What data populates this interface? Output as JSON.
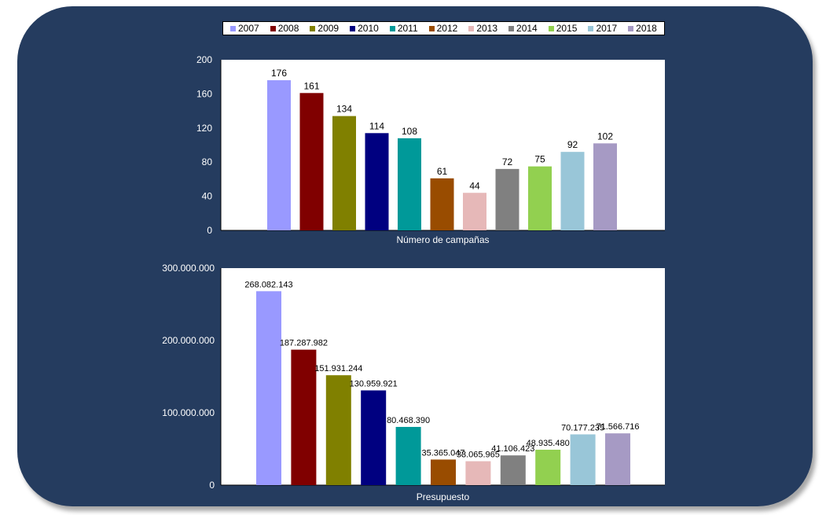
{
  "legend": {
    "items": [
      {
        "label": "2007",
        "color": "#9999ff"
      },
      {
        "label": "2008",
        "color": "#800000"
      },
      {
        "label": "2009",
        "color": "#808000"
      },
      {
        "label": "2010",
        "color": "#000080"
      },
      {
        "label": "2011",
        "color": "#009999"
      },
      {
        "label": "2012",
        "color": "#994c00"
      },
      {
        "label": "2013",
        "color": "#e6b8b8"
      },
      {
        "label": "2014",
        "color": "#808080"
      },
      {
        "label": "2015",
        "color": "#92d050"
      },
      {
        "label": "2017",
        "color": "#99c6d8"
      },
      {
        "label": "2018",
        "color": "#a69ac4"
      }
    ]
  },
  "chart_data": [
    {
      "type": "bar",
      "xlabel": "Número de campañas",
      "ylim": [
        0,
        200
      ],
      "yticks": [
        "200",
        "160",
        "120",
        "80",
        "40",
        "0"
      ],
      "series": [
        {
          "name": "2007",
          "value": 176,
          "label": "176"
        },
        {
          "name": "2008",
          "value": 161,
          "label": "161"
        },
        {
          "name": "2009",
          "value": 134,
          "label": "134"
        },
        {
          "name": "2010",
          "value": 114,
          "label": "114"
        },
        {
          "name": "2011",
          "value": 108,
          "label": "108"
        },
        {
          "name": "2012",
          "value": 61,
          "label": "61"
        },
        {
          "name": "2013",
          "value": 44,
          "label": "44"
        },
        {
          "name": "2014",
          "value": 72,
          "label": "72"
        },
        {
          "name": "2015",
          "value": 75,
          "label": "75"
        },
        {
          "name": "2017",
          "value": 92,
          "label": "92"
        },
        {
          "name": "2018",
          "value": 102,
          "label": "102"
        }
      ]
    },
    {
      "type": "bar",
      "xlabel": "Presupuesto",
      "ylim": [
        0,
        300000000
      ],
      "yticks": [
        "300.000.000",
        "200.000.000",
        "100.000.000",
        "0"
      ],
      "series": [
        {
          "name": "2007",
          "value": 268082143,
          "label": "268.082.143"
        },
        {
          "name": "2008",
          "value": 187287982,
          "label": "187.287.982"
        },
        {
          "name": "2009",
          "value": 151931244,
          "label": "151.931.244"
        },
        {
          "name": "2010",
          "value": 130959921,
          "label": "130.959.921"
        },
        {
          "name": "2011",
          "value": 80468390,
          "label": "80.468.390"
        },
        {
          "name": "2012",
          "value": 35365047,
          "label": "35.365.047"
        },
        {
          "name": "2013",
          "value": 33065965,
          "label": "33.065.965"
        },
        {
          "name": "2014",
          "value": 41106423,
          "label": "41.106.423"
        },
        {
          "name": "2015",
          "value": 48935480,
          "label": "48.935.480"
        },
        {
          "name": "2017",
          "value": 70177235,
          "label": "70.177.235"
        },
        {
          "name": "2018",
          "value": 71566716,
          "label": "71.566.716"
        }
      ]
    }
  ]
}
